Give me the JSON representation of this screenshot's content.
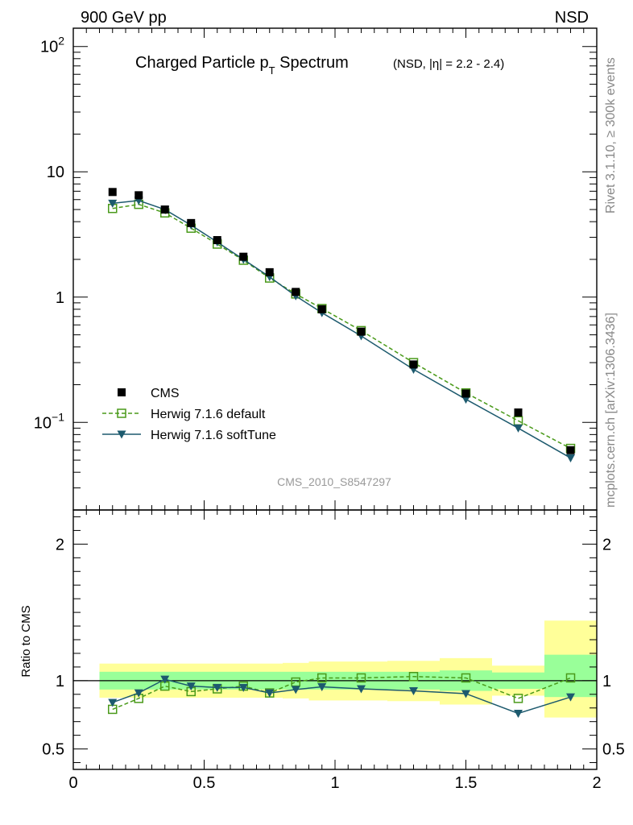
{
  "header": {
    "left": "900 GeV pp",
    "right": "NSD"
  },
  "side_text": {
    "top": "Rivet 3.1.10, ≥ 300k events",
    "bottom": "mcplots.cern.ch [arXiv:1306.3436]"
  },
  "watermark": "CMS_2010_S8547297",
  "colors": {
    "cms": "#000000",
    "default": "#4a9a1a",
    "softtune": "#1d5a6e",
    "band_outer": "#ffff99",
    "band_inner": "#99ff99"
  },
  "chart_data": [
    {
      "type": "scatter",
      "panel": "main",
      "title_main": "Charged Particle p",
      "title_sub": "T",
      "title_rest": " Spectrum",
      "title_small": "(NSD, |η| = 2.2 - 2.4)",
      "xlabel": "",
      "ylabel": "",
      "xlim": [
        0,
        2
      ],
      "ylim": [
        0.02,
        140
      ],
      "yscale": "log",
      "ytick_labels": [
        "10^-1",
        "1",
        "10",
        "10^2"
      ],
      "legend_position": "bottom-left",
      "x": [
        0.15,
        0.25,
        0.35,
        0.45,
        0.55,
        0.65,
        0.75,
        0.85,
        0.95,
        1.1,
        1.3,
        1.5,
        1.7,
        1.9
      ],
      "series": [
        {
          "name": "CMS",
          "marker": "square-filled",
          "values": [
            6.9,
            6.5,
            5.0,
            3.9,
            2.85,
            2.1,
            1.58,
            1.1,
            0.8,
            0.53,
            0.29,
            0.17,
            0.12,
            0.06
          ]
        },
        {
          "name": "Herwig 7.1.6 default",
          "marker": "square-open",
          "line": "dashed",
          "values": [
            5.1,
            5.5,
            4.7,
            3.55,
            2.65,
            1.97,
            1.42,
            1.06,
            0.81,
            0.54,
            0.3,
            0.172,
            0.103,
            0.062
          ]
        },
        {
          "name": "Herwig 7.1.6 softTune",
          "marker": "triangle-down",
          "line": "solid",
          "values": [
            5.6,
            5.9,
            5.0,
            3.75,
            2.75,
            2.0,
            1.45,
            1.02,
            0.75,
            0.49,
            0.265,
            0.153,
            0.09,
            0.052
          ]
        }
      ]
    },
    {
      "type": "scatter",
      "panel": "ratio",
      "xlabel": "",
      "ylabel": "Ratio to CMS",
      "xlim": [
        0,
        2
      ],
      "ylim": [
        0.35,
        2.25
      ],
      "ytick_labels": [
        "0.5",
        "1",
        "2"
      ],
      "xtick_labels": [
        "0",
        "0.5",
        "1",
        "1.5",
        "2"
      ],
      "x": [
        0.15,
        0.25,
        0.35,
        0.45,
        0.55,
        0.65,
        0.75,
        0.85,
        0.95,
        1.1,
        1.3,
        1.5,
        1.7,
        1.9
      ],
      "bin_edges": [
        [
          0.1,
          0.2
        ],
        [
          0.2,
          0.3
        ],
        [
          0.3,
          0.4
        ],
        [
          0.4,
          0.5
        ],
        [
          0.5,
          0.6
        ],
        [
          0.6,
          0.7
        ],
        [
          0.7,
          0.8
        ],
        [
          0.8,
          0.9
        ],
        [
          0.9,
          1.0
        ],
        [
          1.0,
          1.2
        ],
        [
          1.2,
          1.4
        ],
        [
          1.4,
          1.6
        ],
        [
          1.6,
          1.8
        ],
        [
          1.8,
          2.0
        ]
      ],
      "band_outer": [
        [
          0.875,
          1.125
        ],
        [
          0.875,
          1.125
        ],
        [
          0.875,
          1.125
        ],
        [
          0.875,
          1.125
        ],
        [
          0.875,
          1.125
        ],
        [
          0.875,
          1.125
        ],
        [
          0.875,
          1.125
        ],
        [
          0.87,
          1.13
        ],
        [
          0.855,
          1.14
        ],
        [
          0.855,
          1.14
        ],
        [
          0.85,
          1.145
        ],
        [
          0.825,
          1.165
        ],
        [
          0.89,
          1.11
        ],
        [
          0.73,
          1.44
        ]
      ],
      "band_inner": [
        [
          0.935,
          1.065
        ],
        [
          0.935,
          1.065
        ],
        [
          0.935,
          1.065
        ],
        [
          0.935,
          1.065
        ],
        [
          0.935,
          1.065
        ],
        [
          0.935,
          1.065
        ],
        [
          0.935,
          1.065
        ],
        [
          0.935,
          1.065
        ],
        [
          0.935,
          1.065
        ],
        [
          0.935,
          1.065
        ],
        [
          0.935,
          1.065
        ],
        [
          0.925,
          1.075
        ],
        [
          0.94,
          1.06
        ],
        [
          0.88,
          1.19
        ]
      ],
      "series": [
        {
          "name": "Herwig 7.1.6 default",
          "marker": "square-open",
          "line": "dashed",
          "values": [
            0.79,
            0.87,
            0.96,
            0.92,
            0.94,
            0.96,
            0.91,
            0.99,
            1.02,
            1.02,
            1.03,
            1.02,
            0.87,
            1.02
          ]
        },
        {
          "name": "Herwig 7.1.6 softTune",
          "marker": "triangle-down",
          "line": "solid",
          "values": [
            0.84,
            0.91,
            1.01,
            0.96,
            0.95,
            0.95,
            0.91,
            0.935,
            0.955,
            0.94,
            0.925,
            0.905,
            0.76,
            0.88
          ]
        }
      ]
    }
  ]
}
